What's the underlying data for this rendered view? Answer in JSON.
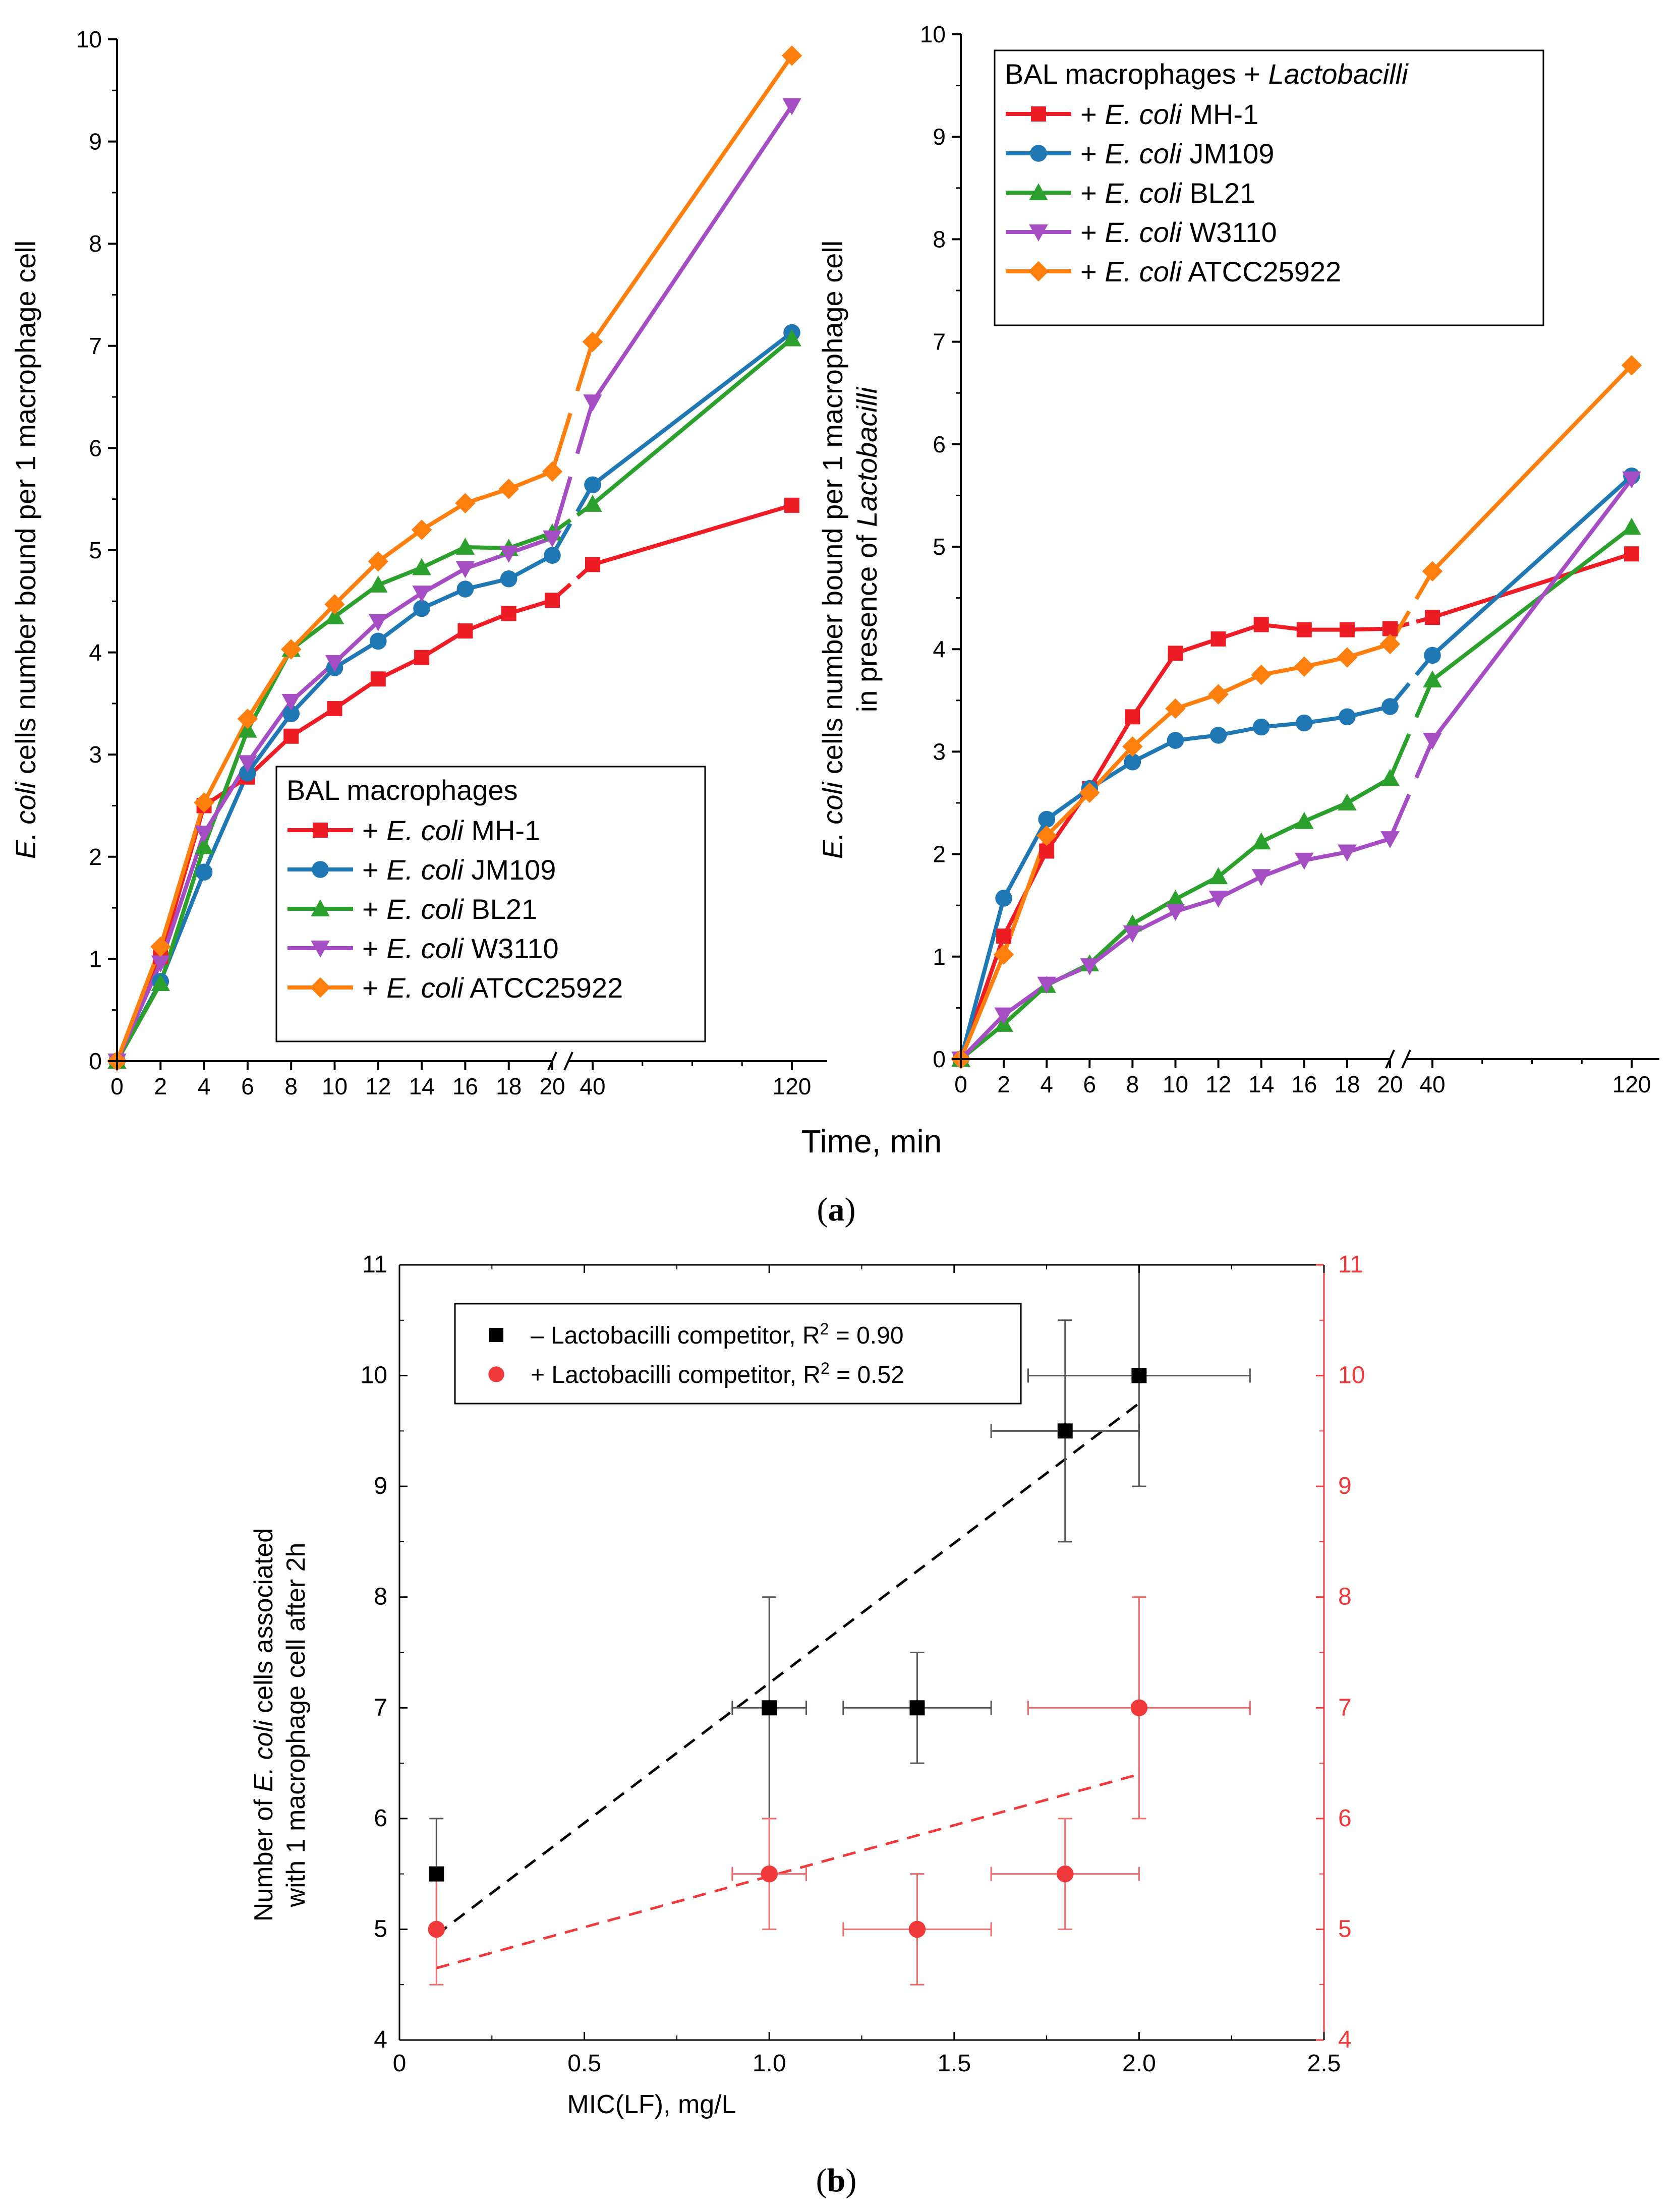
{
  "chart_data": [
    {
      "type": "line",
      "panel": "a-left",
      "legend_title": "BAL macrophages",
      "ylabel_prefix": "E. coli",
      "ylabel_rest": " cells number bound per 1 macrophage cell",
      "ylim": [
        0,
        10
      ],
      "yticks": [
        "0",
        "1",
        "2",
        "3",
        "4",
        "5",
        "6",
        "7",
        "8",
        "9",
        "10"
      ],
      "x": [
        0,
        2,
        4,
        6,
        8,
        10,
        12,
        14,
        16,
        18,
        20,
        40,
        120
      ],
      "xtick_labels": [
        "0",
        "2",
        "4",
        "6",
        "8",
        "10",
        "12",
        "14",
        "16",
        "18",
        "20",
        "40",
        "120"
      ],
      "axis_break": "//",
      "series": [
        {
          "name": "MH-1",
          "prefix": "+ ",
          "italic": "E. coli",
          "suffix": " MH-1",
          "color": "#ee1c25",
          "marker": "square",
          "values": [
            0,
            1.02,
            2.5,
            2.78,
            3.18,
            3.45,
            3.74,
            3.95,
            4.21,
            4.38,
            4.51,
            4.86,
            5.44
          ]
        },
        {
          "name": "JM109",
          "prefix": "+ ",
          "italic": "E. coli",
          "suffix": " JM109",
          "color": "#1f77b4",
          "marker": "circle",
          "values": [
            0,
            0.78,
            1.85,
            2.82,
            3.4,
            3.85,
            4.11,
            4.43,
            4.62,
            4.72,
            4.95,
            5.64,
            7.13
          ]
        },
        {
          "name": "BL21",
          "prefix": "+ ",
          "italic": "E. coli",
          "suffix": " BL21",
          "color": "#2ca02c",
          "marker": "triangle-up",
          "values": [
            0,
            0.76,
            2.1,
            3.24,
            4.03,
            4.35,
            4.66,
            4.83,
            5.03,
            5.02,
            5.17,
            5.45,
            7.07
          ]
        },
        {
          "name": "W3110",
          "prefix": "+ ",
          "italic": "E. coli",
          "suffix": " W3110",
          "color": "#a54ec4",
          "marker": "triangle-down",
          "values": [
            0,
            0.96,
            2.23,
            2.92,
            3.52,
            3.9,
            4.3,
            4.58,
            4.82,
            4.97,
            5.12,
            6.45,
            9.35
          ]
        },
        {
          "name": "ATCC25922",
          "prefix": "+ ",
          "italic": "E. coli",
          "suffix": " ATCC25922",
          "color": "#ff7f0e",
          "marker": "diamond",
          "values": [
            0,
            1.12,
            2.53,
            3.35,
            4.03,
            4.47,
            4.89,
            5.2,
            5.46,
            5.6,
            5.77,
            7.04,
            9.84
          ]
        }
      ]
    },
    {
      "type": "line",
      "panel": "a-right",
      "legend_title_plain": "BAL macrophages + ",
      "legend_title_italic": "Lactobacilli",
      "ylabel_line1_prefix": "E. coli",
      "ylabel_line1_rest": " cells number bound per 1 macrophage cell",
      "ylabel_line2_plain": "in presence of ",
      "ylabel_line2_italic": "Lactobacilli",
      "ylim": [
        0,
        10
      ],
      "yticks": [
        "0",
        "1",
        "2",
        "3",
        "4",
        "5",
        "6",
        "7",
        "8",
        "9",
        "10"
      ],
      "x": [
        0,
        2,
        4,
        6,
        8,
        10,
        12,
        14,
        16,
        18,
        20,
        40,
        120
      ],
      "xtick_labels": [
        "0",
        "2",
        "4",
        "6",
        "8",
        "10",
        "12",
        "14",
        "16",
        "18",
        "20",
        "40",
        "120"
      ],
      "axis_break": "//",
      "series": [
        {
          "name": "MH-1",
          "prefix": "+ ",
          "italic": "E. coli",
          "suffix": " MH-1",
          "color": "#ee1c25",
          "marker": "square",
          "values": [
            0,
            1.2,
            2.03,
            2.64,
            3.34,
            3.96,
            4.1,
            4.24,
            4.19,
            4.19,
            4.2,
            4.31,
            4.93
          ]
        },
        {
          "name": "JM109",
          "prefix": "+ ",
          "italic": "E. coli",
          "suffix": " JM109",
          "color": "#1f77b4",
          "marker": "circle",
          "values": [
            0,
            1.57,
            2.34,
            2.64,
            2.9,
            3.11,
            3.16,
            3.24,
            3.28,
            3.34,
            3.44,
            3.94,
            5.69
          ]
        },
        {
          "name": "BL21",
          "prefix": "+ ",
          "italic": "E. coli",
          "suffix": " BL21",
          "color": "#2ca02c",
          "marker": "triangle-up",
          "values": [
            0,
            0.34,
            0.72,
            0.93,
            1.32,
            1.56,
            1.78,
            2.12,
            2.32,
            2.5,
            2.74,
            3.7,
            5.19
          ]
        },
        {
          "name": "W3110",
          "prefix": "+ ",
          "italic": "E. coli",
          "suffix": " W3110",
          "color": "#a54ec4",
          "marker": "triangle-down",
          "values": [
            0,
            0.43,
            0.73,
            0.91,
            1.23,
            1.44,
            1.57,
            1.78,
            1.94,
            2.02,
            2.15,
            3.11,
            5.66
          ]
        },
        {
          "name": "ATCC25922",
          "prefix": "+ ",
          "italic": "E. coli",
          "suffix": " ATCC25922",
          "color": "#ff7f0e",
          "marker": "diamond",
          "values": [
            0,
            1.02,
            2.18,
            2.6,
            3.05,
            3.42,
            3.56,
            3.75,
            3.83,
            3.92,
            4.05,
            4.76,
            6.77
          ]
        }
      ]
    },
    {
      "type": "scatter",
      "panel": "b",
      "xlabel": "MIC(LF), mg/L",
      "ylabel_line1_prefix": "Number of ",
      "ylabel_line1_italic": "E. coli",
      "ylabel_line1_rest": " cells associated",
      "ylabel_line2": "with 1 macrophage cell after 2h",
      "xlim": [
        0,
        2.5
      ],
      "ylim": [
        4,
        11
      ],
      "xticks": [
        "0",
        "0.5",
        "1.0",
        "1.5",
        "2.0",
        "2.5"
      ],
      "yticks": [
        "4",
        "5",
        "6",
        "7",
        "8",
        "9",
        "10",
        "11"
      ],
      "series": [
        {
          "name_prefix": "– Lactobacilli competitor, R",
          "sup": "2",
          "name_suffix": " = 0.90",
          "color": "#000000",
          "marker": "square",
          "points": [
            {
              "x": 0.1,
              "y": 5.5,
              "xerr": 0.0,
              "yerr": 0.5
            },
            {
              "x": 1.0,
              "y": 7.0,
              "xerr": 0.1,
              "yerr": 1.0
            },
            {
              "x": 1.4,
              "y": 7.0,
              "xerr": 0.2,
              "yerr": 0.5
            },
            {
              "x": 1.8,
              "y": 9.5,
              "xerr": 0.2,
              "yerr": 1.0
            },
            {
              "x": 2.0,
              "y": 10.0,
              "xerr": 0.3,
              "yerr": 1.0
            }
          ],
          "fit": {
            "x": [
              0.1,
              2.0
            ],
            "y": [
              4.95,
              9.75
            ]
          }
        },
        {
          "name_prefix": "+ Lactobacilli competitor, R",
          "sup": "2",
          "name_suffix": " = 0.52",
          "color": "#f0393b",
          "marker": "circle",
          "points": [
            {
              "x": 0.1,
              "y": 5.0,
              "xerr": 0.0,
              "yerr": 0.5
            },
            {
              "x": 1.0,
              "y": 5.5,
              "xerr": 0.1,
              "yerr": 0.5
            },
            {
              "x": 1.4,
              "y": 5.0,
              "xerr": 0.2,
              "yerr": 0.5
            },
            {
              "x": 1.8,
              "y": 5.5,
              "xerr": 0.2,
              "yerr": 0.5
            },
            {
              "x": 2.0,
              "y": 7.0,
              "xerr": 0.3,
              "yerr": 1.0
            }
          ],
          "fit": {
            "x": [
              0.1,
              2.0
            ],
            "y": [
              4.65,
              6.4
            ]
          }
        }
      ]
    }
  ],
  "shared": {
    "xlabel_a": "Time, min"
  },
  "captions": {
    "a": "(a)",
    "b": "(b)"
  }
}
